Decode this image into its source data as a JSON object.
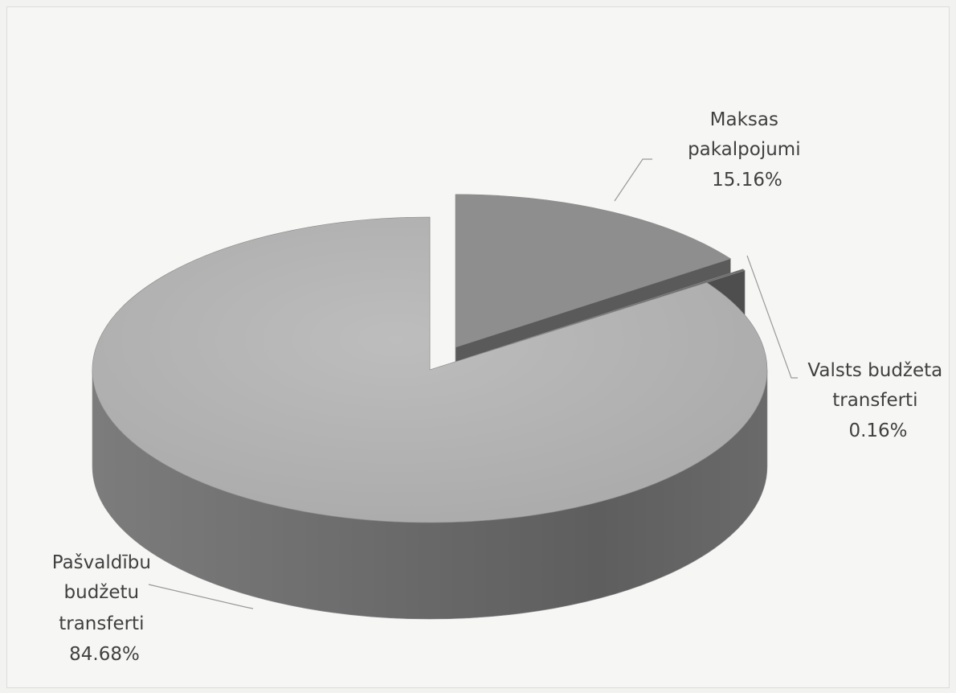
{
  "chart_data": {
    "type": "pie",
    "title": "",
    "slices": [
      {
        "label": "Pašvaldību budžetu transferti",
        "label_lines": [
          "Pašvaldību",
          "budžetu",
          "transferti"
        ],
        "value": 84.68,
        "value_label": "84.68%",
        "color": "#b4b4b4"
      },
      {
        "label": "Valsts budžeta transferti",
        "label_lines": [
          "Valsts budžeta",
          "transferti"
        ],
        "value": 0.16,
        "value_label": "0.16%",
        "color": "#6a6a6a"
      },
      {
        "label": "Maksas pakalpojumi",
        "label_lines": [
          "Maksas",
          "pakalpojumi"
        ],
        "value": 15.16,
        "value_label": "15.16%",
        "color": "#8e8e8e"
      }
    ],
    "style": "3d-exploded",
    "legend": "none"
  }
}
